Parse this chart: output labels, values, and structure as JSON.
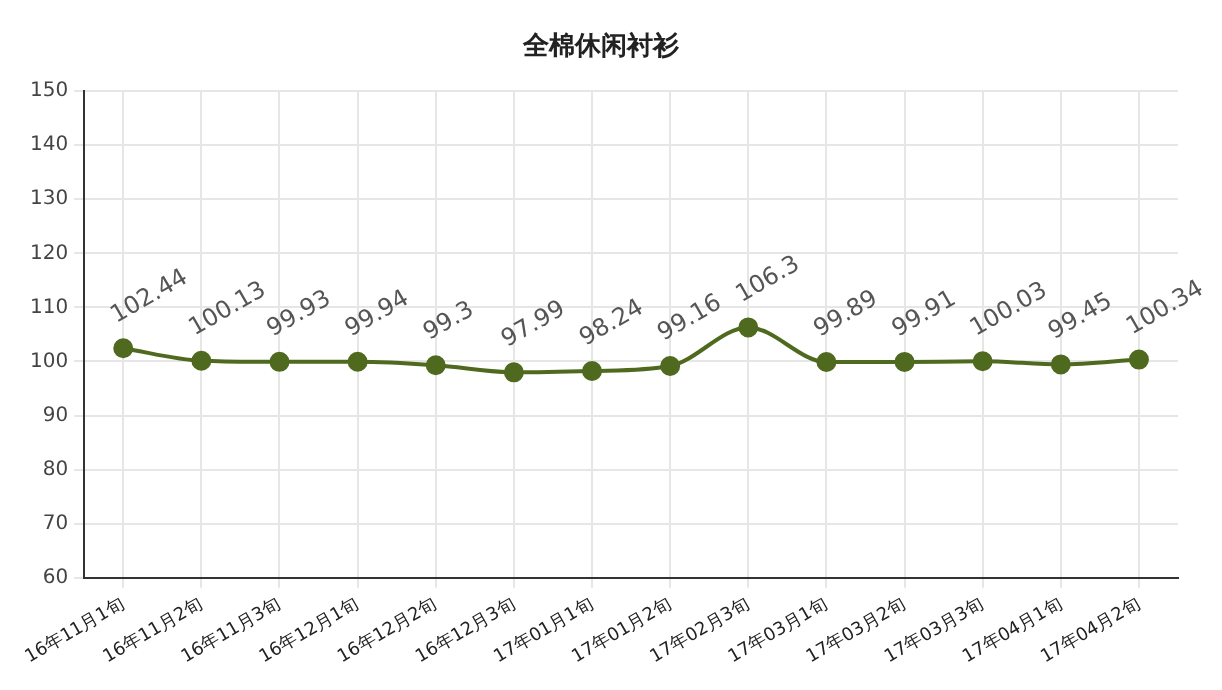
{
  "chart_data": {
    "type": "line",
    "title": "全棉休闲衬衫",
    "categories": [
      "16年11月1旬",
      "16年11月2旬",
      "16年11月3旬",
      "16年12月1旬",
      "16年12月2旬",
      "16年12月3旬",
      "17年01月1旬",
      "17年01月2旬",
      "17年02月3旬",
      "17年03月1旬",
      "17年03月2旬",
      "17年03月3旬",
      "17年04月1旬",
      "17年04月2旬"
    ],
    "series": [
      {
        "color": "#4f6a1e",
        "values": [
          102.44,
          100.13,
          99.93,
          99.94,
          99.3,
          97.99,
          98.24,
          99.16,
          106.3,
          99.89,
          99.91,
          100.03,
          99.45,
          100.34
        ]
      }
    ],
    "ylim": [
      60,
      150
    ],
    "yticks": [
      60,
      70,
      80,
      90,
      100,
      110,
      120,
      130,
      140,
      150
    ],
    "grid": true,
    "legend": false,
    "marker": "circle",
    "line_style": "solid",
    "data_labels": true
  }
}
